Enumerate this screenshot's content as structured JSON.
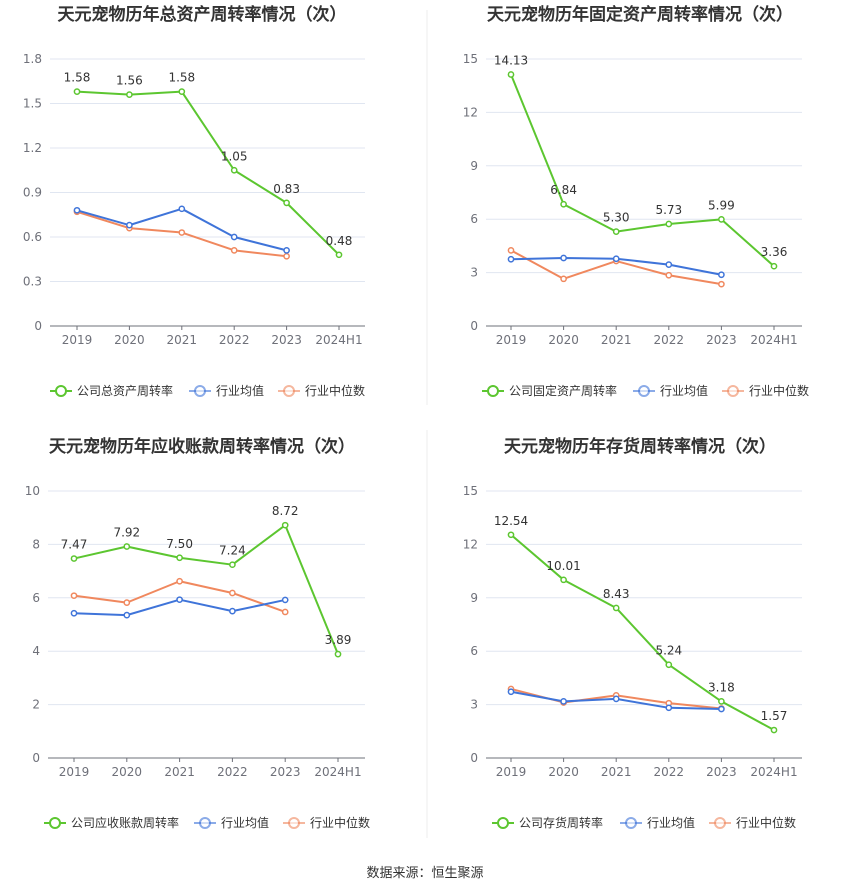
{
  "colors": {
    "company": "#5cc630",
    "avg": "#3f74d9",
    "median": "#f0885e"
  },
  "source": "数据来源：恒生聚源",
  "chart_data": [
    {
      "type": "line",
      "title": "天元宠物历年总资产周转率情况（次）",
      "categories": [
        "2019",
        "2020",
        "2021",
        "2022",
        "2023",
        "2024H1"
      ],
      "ylim": [
        0,
        1.8
      ],
      "yticks": [
        "0",
        "0.3",
        "0.6",
        "0.9",
        "1.2",
        "1.5",
        "1.8"
      ],
      "grid": true,
      "legend_position": "bottom",
      "series": [
        {
          "name": "公司总资产周转率",
          "role": "company",
          "values": [
            1.58,
            1.56,
            1.58,
            1.05,
            0.83,
            0.48
          ],
          "labels": [
            "1.58",
            "1.56",
            "1.58",
            "1.05",
            "0.83",
            "0.48"
          ]
        },
        {
          "name": "行业均值",
          "role": "avg",
          "values": [
            0.78,
            0.68,
            0.79,
            0.6,
            0.51,
            null
          ]
        },
        {
          "name": "行业中位数",
          "role": "median",
          "values": [
            0.77,
            0.66,
            0.63,
            0.51,
            0.47,
            null
          ]
        }
      ]
    },
    {
      "type": "line",
      "title": "天元宠物历年固定资产周转率情况（次）",
      "categories": [
        "2019",
        "2020",
        "2021",
        "2022",
        "2023",
        "2024H1"
      ],
      "ylim": [
        0,
        15
      ],
      "yticks": [
        "0",
        "3",
        "6",
        "9",
        "12",
        "15"
      ],
      "grid": true,
      "legend_position": "bottom",
      "series": [
        {
          "name": "公司固定资产周转率",
          "role": "company",
          "values": [
            14.13,
            6.84,
            5.3,
            5.73,
            5.99,
            3.36
          ],
          "labels": [
            "14.13",
            "6.84",
            "5.30",
            "5.73",
            "5.99",
            "3.36"
          ]
        },
        {
          "name": "行业均值",
          "role": "avg",
          "values": [
            3.75,
            3.82,
            3.78,
            3.45,
            2.88,
            null
          ]
        },
        {
          "name": "行业中位数",
          "role": "median",
          "values": [
            4.25,
            2.65,
            3.65,
            2.85,
            2.35,
            null
          ]
        }
      ]
    },
    {
      "type": "line",
      "title": "天元宠物历年应收账款周转率情况（次）",
      "categories": [
        "2019",
        "2020",
        "2021",
        "2022",
        "2023",
        "2024H1"
      ],
      "ylim": [
        0,
        10
      ],
      "yticks": [
        "0",
        "2",
        "4",
        "6",
        "8",
        "10"
      ],
      "grid": true,
      "legend_position": "bottom",
      "series": [
        {
          "name": "公司应收账款周转率",
          "role": "company",
          "values": [
            7.47,
            7.92,
            7.5,
            7.24,
            8.72,
            3.89
          ],
          "labels": [
            "7.47",
            "7.92",
            "7.50",
            "7.24",
            "8.72",
            "3.89"
          ]
        },
        {
          "name": "行业均值",
          "role": "avg",
          "values": [
            5.42,
            5.35,
            5.93,
            5.5,
            5.92,
            null
          ]
        },
        {
          "name": "行业中位数",
          "role": "median",
          "values": [
            6.08,
            5.82,
            6.62,
            6.18,
            5.47,
            null
          ]
        }
      ]
    },
    {
      "type": "line",
      "title": "天元宠物历年存货周转率情况（次）",
      "categories": [
        "2019",
        "2020",
        "2021",
        "2022",
        "2023",
        "2024H1"
      ],
      "ylim": [
        0,
        15
      ],
      "yticks": [
        "0",
        "3",
        "6",
        "9",
        "12",
        "15"
      ],
      "grid": true,
      "legend_position": "bottom",
      "series": [
        {
          "name": "公司存货周转率",
          "role": "company",
          "values": [
            12.54,
            10.01,
            8.43,
            5.24,
            3.18,
            1.57
          ],
          "labels": [
            "12.54",
            "10.01",
            "8.43",
            "5.24",
            "3.18",
            "1.57"
          ]
        },
        {
          "name": "行业均值",
          "role": "avg",
          "values": [
            3.72,
            3.18,
            3.32,
            2.82,
            2.75,
            null
          ]
        },
        {
          "name": "行业中位数",
          "role": "median",
          "values": [
            3.88,
            3.12,
            3.52,
            3.08,
            2.78,
            null
          ]
        }
      ]
    }
  ]
}
